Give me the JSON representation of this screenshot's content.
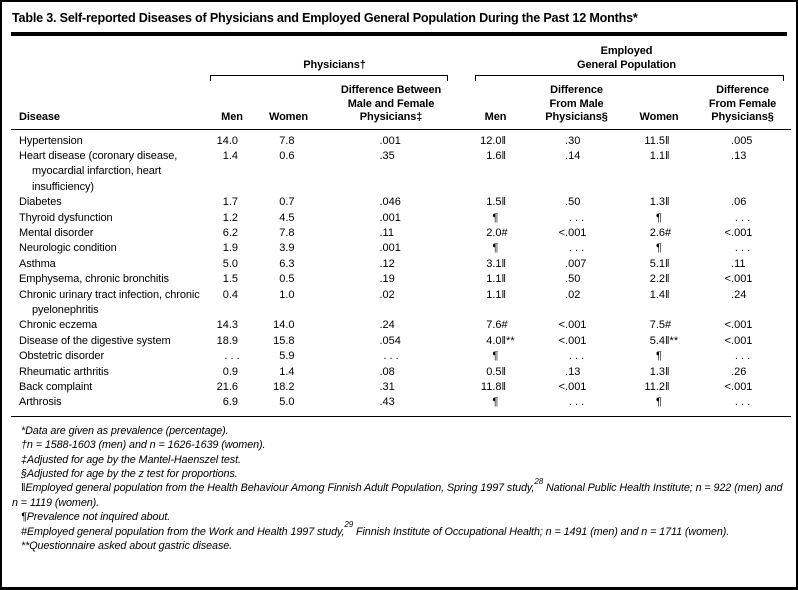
{
  "title": "Table 3. Self-reported Diseases of Physicians and Employed General Population During the Past 12 Months*",
  "table": {
    "groups": {
      "physicians": "Physicians†",
      "employed": "Employed\nGeneral Population"
    },
    "headers": {
      "disease": "Disease",
      "p_men": "Men",
      "p_women": "Women",
      "p_diff": "Difference Between\nMale and Female\nPhysicians‡",
      "e_men": "Men",
      "e_diff_m": "Difference\nFrom Male\nPhysicians§",
      "e_women": "Women",
      "e_diff_f": "Difference\nFrom Female\nPhysicians§"
    },
    "rows": [
      {
        "disease": "Hypertension",
        "p_men": {
          "v": "14.0"
        },
        "p_women": {
          "v": "7.8"
        },
        "p_diff": {
          "v": ".001"
        },
        "e_men": {
          "v": "12.0",
          "s": "‖"
        },
        "e_diff_m": {
          "v": ".30"
        },
        "e_women": {
          "v": "11.5",
          "s": "‖"
        },
        "e_diff_f": {
          "v": ".005"
        }
      },
      {
        "disease": "Heart disease (coronary disease, myocardial infarction, heart insufficiency)",
        "p_men": {
          "v": "1.4"
        },
        "p_women": {
          "v": "0.6"
        },
        "p_diff": {
          "v": ".35"
        },
        "e_men": {
          "v": "1.6",
          "s": "‖"
        },
        "e_diff_m": {
          "v": ".14"
        },
        "e_women": {
          "v": "1.1",
          "s": "‖"
        },
        "e_diff_f": {
          "v": ".13"
        }
      },
      {
        "disease": "Diabetes",
        "p_men": {
          "v": "1.7"
        },
        "p_women": {
          "v": "0.7"
        },
        "p_diff": {
          "v": ".046"
        },
        "e_men": {
          "v": "1.5",
          "s": "‖"
        },
        "e_diff_m": {
          "v": ".50"
        },
        "e_women": {
          "v": "1.3",
          "s": "‖"
        },
        "e_diff_f": {
          "v": ".06"
        }
      },
      {
        "disease": "Thyroid dysfunction",
        "p_men": {
          "v": "1.2"
        },
        "p_women": {
          "v": "4.5"
        },
        "p_diff": {
          "v": ".001"
        },
        "e_men": {
          "c": "¶"
        },
        "e_diff_m": {
          "c": ". . ."
        },
        "e_women": {
          "c": "¶"
        },
        "e_diff_f": {
          "c": ". . ."
        }
      },
      {
        "disease": "Mental disorder",
        "p_men": {
          "v": "6.2"
        },
        "p_women": {
          "v": "7.8"
        },
        "p_diff": {
          "v": ".11"
        },
        "e_men": {
          "v": "2.0",
          "s": "#"
        },
        "e_diff_m": {
          "pre": "<",
          "v": ".001"
        },
        "e_women": {
          "v": "2.6",
          "s": "#"
        },
        "e_diff_f": {
          "pre": "<",
          "v": ".001"
        }
      },
      {
        "disease": "Neurologic condition",
        "p_men": {
          "v": "1.9"
        },
        "p_women": {
          "v": "3.9"
        },
        "p_diff": {
          "v": ".001"
        },
        "e_men": {
          "c": "¶"
        },
        "e_diff_m": {
          "c": ". . ."
        },
        "e_women": {
          "c": "¶"
        },
        "e_diff_f": {
          "c": ". . ."
        }
      },
      {
        "disease": "Asthma",
        "p_men": {
          "v": "5.0"
        },
        "p_women": {
          "v": "6.3"
        },
        "p_diff": {
          "v": ".12"
        },
        "e_men": {
          "v": "3.1",
          "s": "‖"
        },
        "e_diff_m": {
          "v": ".007"
        },
        "e_women": {
          "v": "5.1",
          "s": "‖"
        },
        "e_diff_f": {
          "v": ".11"
        }
      },
      {
        "disease": "Emphysema, chronic bronchitis",
        "p_men": {
          "v": "1.5"
        },
        "p_women": {
          "v": "0.5"
        },
        "p_diff": {
          "v": ".19"
        },
        "e_men": {
          "v": "1.1",
          "s": "‖"
        },
        "e_diff_m": {
          "v": ".50"
        },
        "e_women": {
          "v": "2.2",
          "s": "‖"
        },
        "e_diff_f": {
          "pre": "<",
          "v": ".001"
        }
      },
      {
        "disease": "Chronic urinary tract infection, chronic pyelonephritis",
        "p_men": {
          "v": "0.4"
        },
        "p_women": {
          "v": "1.0"
        },
        "p_diff": {
          "v": ".02"
        },
        "e_men": {
          "v": "1.1",
          "s": "‖"
        },
        "e_diff_m": {
          "v": ".02"
        },
        "e_women": {
          "v": "1.4",
          "s": "‖"
        },
        "e_diff_f": {
          "v": ".24"
        }
      },
      {
        "disease": "Chronic eczema",
        "p_men": {
          "v": "14.3"
        },
        "p_women": {
          "v": "14.0"
        },
        "p_diff": {
          "v": ".24"
        },
        "e_men": {
          "v": "7.6",
          "s": "#"
        },
        "e_diff_m": {
          "pre": "<",
          "v": ".001"
        },
        "e_women": {
          "v": "7.5",
          "s": "#"
        },
        "e_diff_f": {
          "pre": "<",
          "v": ".001"
        }
      },
      {
        "disease": "Disease of the digestive system",
        "p_men": {
          "v": "18.9"
        },
        "p_women": {
          "v": "15.8"
        },
        "p_diff": {
          "v": ".054"
        },
        "e_men": {
          "v": "4.0",
          "s": "‖**"
        },
        "e_diff_m": {
          "pre": "<",
          "v": ".001"
        },
        "e_women": {
          "v": "5.4",
          "s": "‖**"
        },
        "e_diff_f": {
          "pre": "<",
          "v": ".001"
        }
      },
      {
        "disease": "Obstetric disorder",
        "p_men": {
          "c": ". . ."
        },
        "p_women": {
          "v": "5.9"
        },
        "p_diff": {
          "c": ". . ."
        },
        "e_men": {
          "c": "¶"
        },
        "e_diff_m": {
          "c": ". . ."
        },
        "e_women": {
          "c": "¶"
        },
        "e_diff_f": {
          "c": ". . ."
        }
      },
      {
        "disease": "Rheumatic arthritis",
        "p_men": {
          "v": "0.9"
        },
        "p_women": {
          "v": "1.4"
        },
        "p_diff": {
          "v": ".08"
        },
        "e_men": {
          "v": "0.5",
          "s": "‖"
        },
        "e_diff_m": {
          "v": ".13"
        },
        "e_women": {
          "v": "1.3",
          "s": "‖"
        },
        "e_diff_f": {
          "v": ".26"
        }
      },
      {
        "disease": "Back complaint",
        "p_men": {
          "v": "21.6"
        },
        "p_women": {
          "v": "18.2"
        },
        "p_diff": {
          "v": ".31"
        },
        "e_men": {
          "v": "11.8",
          "s": "‖"
        },
        "e_diff_m": {
          "pre": "<",
          "v": ".001"
        },
        "e_women": {
          "v": "11.2",
          "s": "‖"
        },
        "e_diff_f": {
          "pre": "<",
          "v": ".001"
        }
      },
      {
        "disease": "Arthrosis",
        "p_men": {
          "v": "6.9"
        },
        "p_women": {
          "v": "5.0"
        },
        "p_diff": {
          "v": ".43"
        },
        "e_men": {
          "c": "¶"
        },
        "e_diff_m": {
          "c": ". . ."
        },
        "e_women": {
          "c": "¶"
        },
        "e_diff_f": {
          "c": ". . ."
        }
      }
    ]
  },
  "footnotes": [
    {
      "text": "*Data are given as prevalence (percentage)."
    },
    {
      "text": "†n = 1588-1603 (men) and n = 1626-1639 (women)."
    },
    {
      "text": "‡Adjusted for age by the Mantel-Haenszel test."
    },
    {
      "text": "§Adjusted for age by the z test for proportions."
    },
    {
      "pre": "‖Employed general population from the Health Behaviour Among Finnish Adult Population, Spring 1997 study,",
      "sup": "28",
      "post": " National Public Health Institute; n = 922 (men) and n = 1119 (women)."
    },
    {
      "text": "¶Prevalence not inquired about."
    },
    {
      "pre": "#Employed general population from the Work and Health 1997 study,",
      "sup": "29",
      "post": " Finnish Institute of Occupational Health; n = 1491 (men) and n = 1711 (women)."
    },
    {
      "text": "**Questionnaire asked about gastric disease."
    }
  ]
}
